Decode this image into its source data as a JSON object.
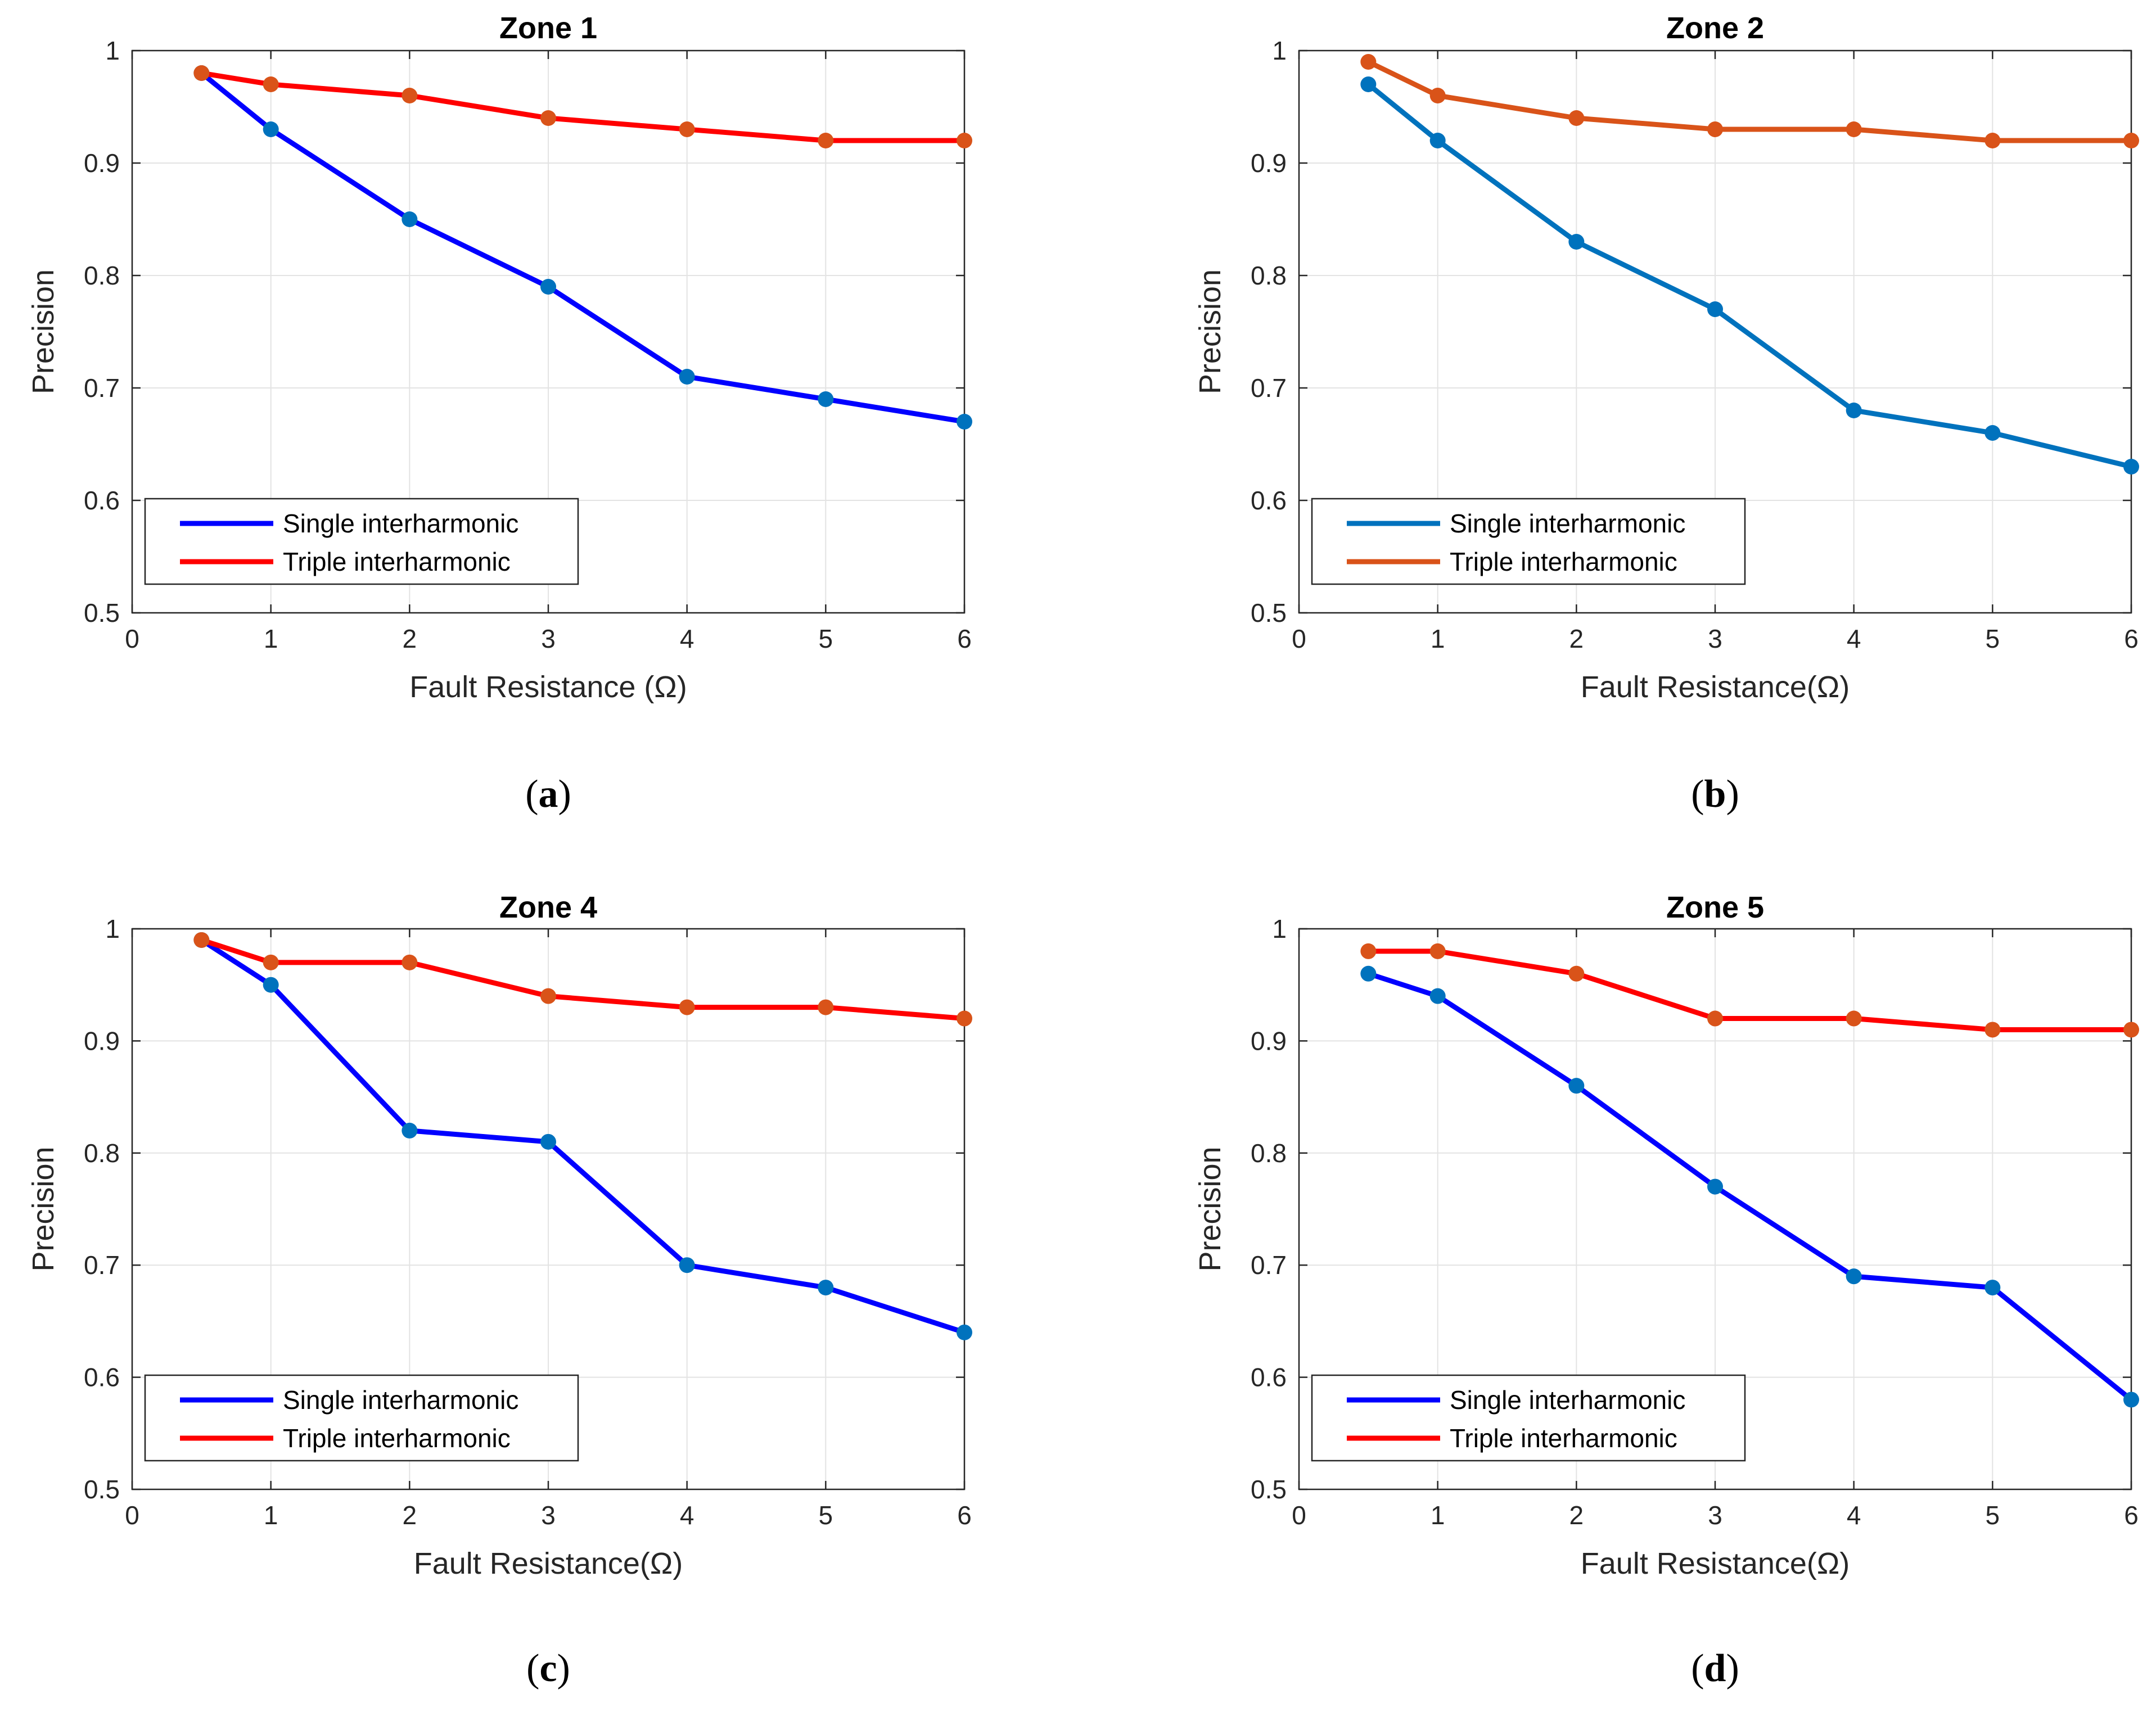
{
  "chart_data": [
    {
      "type": "line",
      "title": "Zone 1",
      "caption": {
        "open": "(",
        "letter": "a",
        "close": ")"
      },
      "xlabel": "Fault Resistance (Ω)",
      "ylabel": "Precision",
      "xlim": [
        0,
        6
      ],
      "ylim": [
        0.5,
        1
      ],
      "xticks": [
        "0",
        "1",
        "2",
        "3",
        "4",
        "5",
        "6"
      ],
      "yticks": [
        "0.5",
        "0.6",
        "0.7",
        "0.8",
        "0.9",
        "1"
      ],
      "grid": true,
      "legend_position": "bottom-left",
      "x": [
        0.5,
        1,
        2,
        3,
        4,
        5,
        6
      ],
      "series": [
        {
          "name": "Single interharmonic",
          "line_color": "#0000ff",
          "marker_color": "#0072bd",
          "values": [
            0.98,
            0.93,
            0.85,
            0.79,
            0.71,
            0.69,
            0.67
          ]
        },
        {
          "name": "Triple interharmonic",
          "line_color": "#ff0000",
          "marker_color": "#d95319",
          "values": [
            0.98,
            0.97,
            0.96,
            0.94,
            0.93,
            0.92,
            0.92
          ]
        }
      ]
    },
    {
      "type": "line",
      "title": "Zone 2",
      "caption": {
        "open": "(",
        "letter": "b",
        "close": ")"
      },
      "xlabel": "Fault Resistance(Ω)",
      "ylabel": "Precision",
      "xlim": [
        0,
        6
      ],
      "ylim": [
        0.5,
        1
      ],
      "xticks": [
        "0",
        "1",
        "2",
        "3",
        "4",
        "5",
        "6"
      ],
      "yticks": [
        "0.5",
        "0.6",
        "0.7",
        "0.8",
        "0.9",
        "1"
      ],
      "grid": true,
      "legend_position": "bottom-left",
      "x": [
        0.5,
        1,
        2,
        3,
        4,
        5,
        6
      ],
      "series": [
        {
          "name": "Single interharmonic",
          "line_color": "#0072bd",
          "marker_color": "#0072bd",
          "values": [
            0.97,
            0.92,
            0.83,
            0.77,
            0.68,
            0.66,
            0.63
          ]
        },
        {
          "name": "Triple interharmonic",
          "line_color": "#d95319",
          "marker_color": "#d95319",
          "values": [
            0.99,
            0.96,
            0.94,
            0.93,
            0.93,
            0.92,
            0.92
          ]
        }
      ]
    },
    {
      "type": "line",
      "title": "Zone 4",
      "caption": {
        "open": "(",
        "letter": "c",
        "close": ")"
      },
      "xlabel": "Fault Resistance(Ω)",
      "ylabel": "Precision",
      "xlim": [
        0,
        6
      ],
      "ylim": [
        0.5,
        1
      ],
      "xticks": [
        "0",
        "1",
        "2",
        "3",
        "4",
        "5",
        "6"
      ],
      "yticks": [
        "0.5",
        "0.6",
        "0.7",
        "0.8",
        "0.9",
        "1"
      ],
      "grid": true,
      "legend_position": "bottom-left",
      "x": [
        0.5,
        1,
        2,
        3,
        4,
        5,
        6
      ],
      "series": [
        {
          "name": "Single interharmonic",
          "line_color": "#0000ff",
          "marker_color": "#0072bd",
          "values": [
            0.99,
            0.95,
            0.82,
            0.81,
            0.7,
            0.68,
            0.64
          ]
        },
        {
          "name": "Triple interharmonic",
          "line_color": "#ff0000",
          "marker_color": "#d95319",
          "values": [
            0.99,
            0.97,
            0.97,
            0.94,
            0.93,
            0.93,
            0.92
          ]
        }
      ]
    },
    {
      "type": "line",
      "title": "Zone 5",
      "caption": {
        "open": "(",
        "letter": "d",
        "close": ")"
      },
      "xlabel": "Fault Resistance(Ω)",
      "ylabel": "Precision",
      "xlim": [
        0,
        6
      ],
      "ylim": [
        0.5,
        1
      ],
      "xticks": [
        "0",
        "1",
        "2",
        "3",
        "4",
        "5",
        "6"
      ],
      "yticks": [
        "0.5",
        "0.6",
        "0.7",
        "0.8",
        "0.9",
        "1"
      ],
      "grid": true,
      "legend_position": "bottom-left",
      "x": [
        0.5,
        1,
        2,
        3,
        4,
        5,
        6
      ],
      "series": [
        {
          "name": "Single interharmonic",
          "line_color": "#0000ff",
          "marker_color": "#0072bd",
          "values": [
            0.96,
            0.94,
            0.86,
            0.77,
            0.69,
            0.68,
            0.58
          ]
        },
        {
          "name": "Triple interharmonic",
          "line_color": "#ff0000",
          "marker_color": "#d95319",
          "values": [
            0.98,
            0.98,
            0.96,
            0.92,
            0.92,
            0.91,
            0.91
          ]
        }
      ]
    }
  ]
}
